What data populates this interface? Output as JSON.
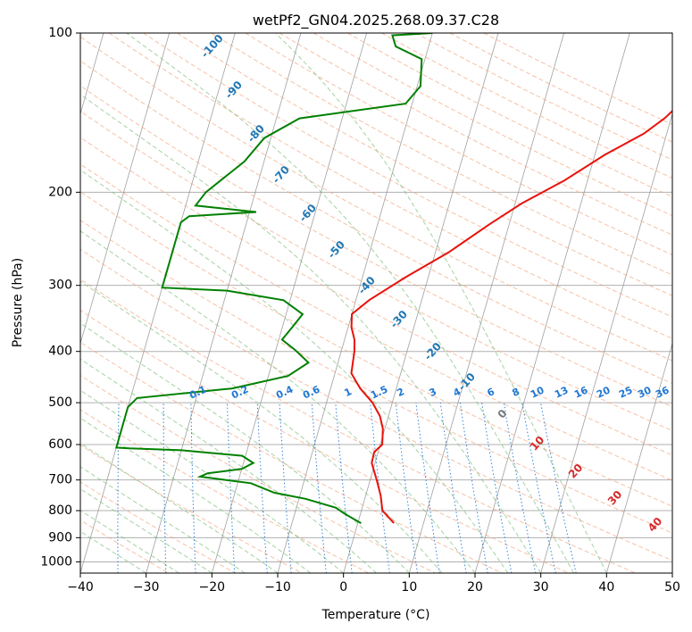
{
  "chart_data": {
    "type": "line",
    "title": "wetPf2_GN04.2025.268.09.37.C28",
    "xlabel": "Temperature (°C)",
    "ylabel": "Pressure (hPa)",
    "xlim": [
      -40,
      50
    ],
    "ylim": [
      1050,
      100
    ],
    "y_scale": "log",
    "grid": true,
    "x_ticks": [
      -40,
      -30,
      -20,
      -10,
      0,
      10,
      20,
      30,
      40,
      50
    ],
    "x_tick_labels": [
      "−40",
      "−30",
      "−20",
      "−10",
      "0",
      "10",
      "20",
      "30",
      "40",
      "50"
    ],
    "y_ticks": [
      100,
      200,
      300,
      400,
      500,
      600,
      700,
      800,
      900,
      1000
    ],
    "y_tick_labels": [
      "100",
      "200",
      "300",
      "400",
      "500",
      "600",
      "700",
      "800",
      "900",
      "1000"
    ],
    "series": [
      {
        "color": "#e8120b",
        "points": [
          [
            5.5,
            845
          ],
          [
            3.2,
            800
          ],
          [
            2.3,
            750
          ],
          [
            1.0,
            700
          ],
          [
            -0.5,
            650
          ],
          [
            -0.6,
            620
          ],
          [
            0.3,
            600
          ],
          [
            -0.3,
            560
          ],
          [
            -1.3,
            530
          ],
          [
            -3.0,
            500
          ],
          [
            -5.5,
            470
          ],
          [
            -7.5,
            440
          ],
          [
            -8.0,
            400
          ],
          [
            -8.5,
            380
          ],
          [
            -9.5,
            360
          ],
          [
            -10.0,
            340
          ],
          [
            -8.0,
            320
          ],
          [
            -3.5,
            290
          ],
          [
            2.0,
            260
          ],
          [
            7.0,
            230
          ],
          [
            11.0,
            210
          ],
          [
            16.5,
            190
          ],
          [
            21.5,
            170
          ],
          [
            26.5,
            155
          ],
          [
            29.0,
            145
          ],
          [
            32.0,
            130
          ],
          [
            38.5,
            115
          ],
          [
            42.5,
            100
          ]
        ]
      },
      {
        "color": "#008000",
        "points": [
          [
            0.5,
            845
          ],
          [
            -2.5,
            810
          ],
          [
            -4.0,
            790
          ],
          [
            -9.0,
            760
          ],
          [
            -14.0,
            740
          ],
          [
            -18.0,
            710
          ],
          [
            -24.0,
            695
          ],
          [
            -26.0,
            690
          ],
          [
            -25.0,
            680
          ],
          [
            -20.0,
            667
          ],
          [
            -18.5,
            650
          ],
          [
            -20.5,
            630
          ],
          [
            -30.0,
            615
          ],
          [
            -38.0,
            610
          ],
          [
            -40.0,
            608
          ],
          [
            -40.0,
            510
          ],
          [
            -39.0,
            490
          ],
          [
            -25.0,
            470
          ],
          [
            -17.0,
            445
          ],
          [
            -14.5,
            420
          ],
          [
            -17.0,
            398
          ],
          [
            -19.5,
            380
          ],
          [
            -18.5,
            360
          ],
          [
            -17.5,
            340
          ],
          [
            -21.0,
            320
          ],
          [
            -30.0,
            307
          ],
          [
            -40.0,
            303
          ],
          [
            -40.0,
            228
          ],
          [
            -39.0,
            222
          ],
          [
            -29.0,
            218
          ],
          [
            -38.5,
            212
          ],
          [
            -37.5,
            200
          ],
          [
            -33.0,
            175
          ],
          [
            -31.0,
            158
          ],
          [
            -26.5,
            145
          ],
          [
            -11.0,
            136
          ],
          [
            -9.5,
            126
          ],
          [
            -10.5,
            112
          ],
          [
            -15.0,
            106
          ],
          [
            -16.0,
            101
          ],
          [
            -10.0,
            100
          ]
        ]
      }
    ],
    "dry_adiabat_labels": [
      "-100",
      "-90",
      "-80",
      "-70",
      "-60",
      "-50",
      "-40",
      "-30",
      "-20",
      "-10",
      "0",
      "10",
      "20",
      "30",
      "40"
    ],
    "mixing_ratio_labels": [
      "0.1",
      "0.2",
      "0.4",
      "0.6",
      "1",
      "1.5",
      "2",
      "3",
      "4",
      "6",
      "8",
      "10",
      "13",
      "16",
      "20",
      "25",
      "30",
      "36"
    ],
    "colors": {
      "temperature": "#e8120b",
      "dewpoint": "#008000",
      "isotherms": "#888888",
      "dry_adiabats": "#f4a582",
      "moist_adiabats": "#7fbf7f",
      "mixing_ratio": "#1f77d4",
      "label_blue": "#1f77b4",
      "label_red": "#d62728"
    }
  }
}
